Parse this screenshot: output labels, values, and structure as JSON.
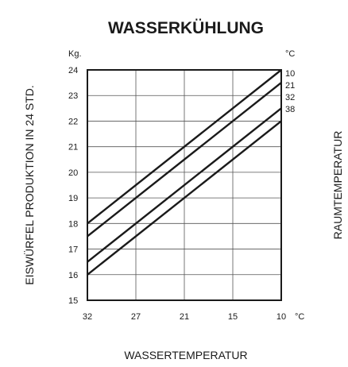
{
  "chart_data": {
    "type": "line",
    "title": "WASSERKÜHLUNG",
    "xlabel": "WASSERTEMPERATUR",
    "ylabel": "EISWÜRFEL PRODUKTION IN 24 STD.",
    "y2label": "RAUMTEMPERATUR",
    "y_unit": "Kg.",
    "x_unit": "°C",
    "series_unit": "°C",
    "x_tick_labels": [
      "32",
      "27",
      "21",
      "15",
      "10"
    ],
    "x_tick_unit": "°C",
    "y_ticks": [
      15,
      16,
      17,
      18,
      19,
      20,
      21,
      22,
      23,
      24
    ],
    "ylim": [
      15,
      24
    ],
    "grid": true,
    "series": [
      {
        "name": "10",
        "start": 18.0,
        "end": 24.0
      },
      {
        "name": "21",
        "start": 17.5,
        "end": 23.5
      },
      {
        "name": "32",
        "start": 16.5,
        "end": 22.5
      },
      {
        "name": "38",
        "start": 16.0,
        "end": 22.0
      }
    ]
  }
}
